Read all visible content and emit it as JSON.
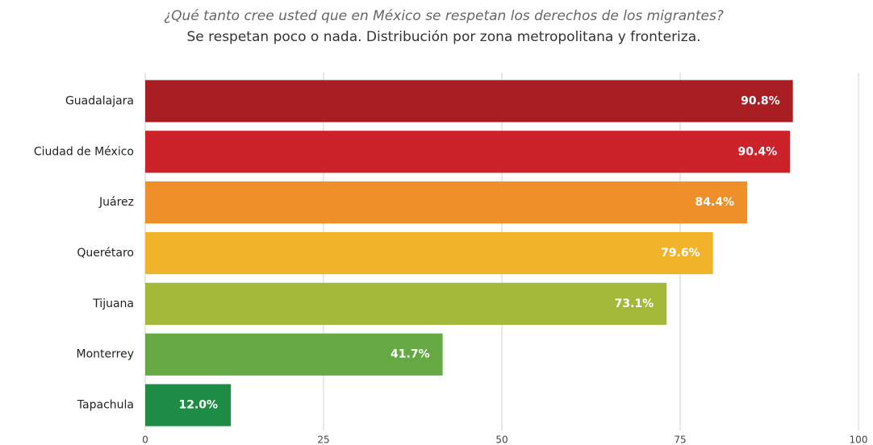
{
  "chart_data": {
    "type": "hbar",
    "title": "¿Qué tanto cree usted que en México se respetan los derechos de los migrantes?",
    "subtitle": "Se respetan poco o nada. Distribución por zona metropolitana y fronteriza.",
    "categories": [
      "Guadalajara",
      "Ciudad de México",
      "Juárez",
      "Querétaro",
      "Tijuana",
      "Monterrey",
      "Tapachula"
    ],
    "values": [
      90.8,
      90.4,
      84.4,
      79.6,
      73.1,
      41.7,
      12.0
    ],
    "value_labels": [
      "90.8%",
      "90.4%",
      "84.4%",
      "79.6%",
      "73.1%",
      "41.7%",
      "12.0%"
    ],
    "colors": [
      "#a81e23",
      "#cc2229",
      "#ef8f2a",
      "#f0b32a",
      "#a4b83a",
      "#66a844",
      "#1e8c45"
    ],
    "xlim": [
      0,
      100
    ],
    "xticks": [
      0,
      25,
      50,
      75,
      100
    ],
    "grid": true
  }
}
